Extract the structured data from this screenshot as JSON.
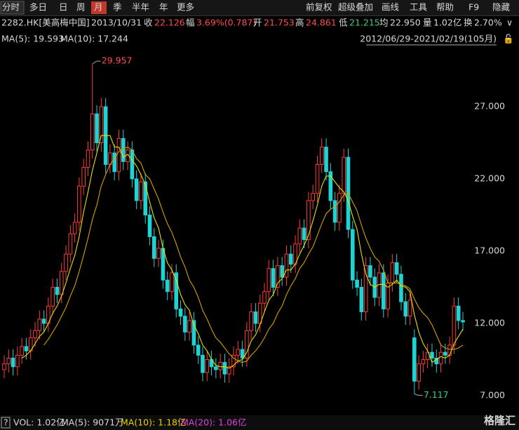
{
  "toolbar": {
    "periods": [
      "分时",
      "多日",
      "日",
      "周",
      "月",
      "季",
      "半年",
      "年",
      "更多"
    ],
    "tools": [
      "前复权",
      "超级叠加",
      "画线",
      "工具",
      "帮助",
      "F9",
      "隐藏"
    ]
  },
  "quote": {
    "symbol": "2282.HK[美高梅中国]",
    "date": "2013/10/31",
    "fields": [
      {
        "label": "收",
        "value": 22.126
      },
      {
        "label": "幅",
        "value": "3.69%(0.787)"
      },
      {
        "label": "开",
        "value": 21.753
      },
      {
        "label": "高",
        "value": 24.861
      },
      {
        "label": "低",
        "value": 21.215
      },
      {
        "label": "均",
        "value": "22.950"
      },
      {
        "label": "量",
        "value": "1.02亿"
      },
      {
        "label": "换",
        "value": "2.70%"
      }
    ]
  },
  "range": "2012/06/29-2021/02/19(105月)",
  "volume_legend": [
    "VOL: 1.02亿",
    "MA(5): 9071万",
    "MA(10): 1.18亿",
    "MA(20): 1.06亿"
  ],
  "watermark": "格隆汇",
  "chart_data": {
    "type": "candlestick",
    "ylim": [
      5.74,
      31.08
    ],
    "yticks": [
      {
        "value": 7,
        "label": "7.000"
      },
      {
        "value": 12,
        "label": "12.000"
      },
      {
        "value": 17,
        "label": "17.000"
      },
      {
        "value": 22,
        "label": "22.000"
      },
      {
        "value": 27,
        "label": "27.000"
      }
    ],
    "candles": {
      "up_color": "#ff3b3b",
      "down_color": "#1fd3d3",
      "open": [
        8.8,
        9.2,
        9.6,
        9.0,
        9.8,
        10.4,
        10.1,
        11.0,
        11.5,
        12.3,
        12.0,
        13.2,
        14.5,
        14.0,
        15.6,
        16.8,
        18.2,
        19.0,
        21.5,
        22.8,
        24.0,
        26.5,
        24.5,
        27.0,
        23.0,
        23.8,
        22.5,
        24.8,
        23.2,
        24.0,
        22.0,
        20.5,
        21.8,
        19.5,
        18.0,
        16.5,
        17.2,
        15.0,
        14.2,
        15.5,
        13.0,
        12.5,
        11.4,
        12.2,
        10.5,
        9.8,
        8.6,
        9.5,
        9.0,
        8.8,
        9.3,
        8.5,
        9.0,
        9.8,
        10.2,
        9.6,
        11.5,
        12.8,
        12.0,
        13.4,
        14.2,
        15.8,
        14.5,
        16.0,
        15.2,
        16.8,
        16.1,
        17.5,
        18.6,
        17.8,
        20.5,
        21.0,
        23.0,
        24.2,
        22.5,
        20.5,
        19.0,
        21.0,
        23.5,
        18.5,
        15.0,
        14.5,
        12.8,
        16.0,
        15.2,
        13.8,
        15.5,
        13.0,
        14.8,
        16.2,
        15.4,
        13.5,
        12.5,
        11.0,
        8.0,
        9.2,
        9.5,
        10.0,
        9.6,
        9.2,
        10.0,
        9.8,
        10.5,
        13.2,
        12.2
      ],
      "high": [
        9.8,
        10.2,
        10.2,
        10.4,
        11.0,
        11.0,
        11.6,
        12.1,
        12.9,
        12.9,
        13.8,
        15.1,
        15.1,
        16.2,
        17.4,
        18.8,
        19.6,
        22.1,
        23.4,
        24.6,
        29.957,
        27.1,
        27.6,
        27.6,
        24.4,
        24.4,
        25.4,
        25.4,
        24.6,
        24.6,
        22.6,
        22.4,
        22.4,
        20.1,
        18.6,
        17.8,
        17.8,
        15.6,
        16.1,
        16.1,
        13.6,
        13.1,
        12.8,
        12.8,
        11.1,
        10.4,
        10.1,
        10.1,
        9.6,
        9.9,
        9.9,
        9.6,
        10.4,
        10.8,
        10.8,
        12.1,
        13.4,
        13.4,
        14.0,
        14.8,
        16.4,
        16.4,
        16.6,
        16.6,
        17.4,
        17.4,
        18.1,
        19.2,
        19.2,
        21.1,
        21.6,
        23.6,
        24.8,
        24.8,
        23.1,
        21.1,
        21.6,
        24.1,
        24.1,
        19.1,
        15.6,
        15.1,
        16.6,
        16.6,
        15.8,
        16.1,
        16.1,
        15.4,
        16.8,
        16.8,
        16.0,
        14.1,
        14.2,
        11.6,
        9.8,
        10.1,
        10.6,
        10.6,
        10.2,
        10.6,
        10.6,
        11.1,
        13.8,
        13.8,
        12.8
      ],
      "low": [
        8.2,
        8.6,
        8.4,
        8.4,
        9.2,
        9.5,
        9.5,
        10.4,
        10.9,
        11.4,
        11.4,
        12.6,
        13.4,
        13.4,
        15.0,
        16.2,
        17.6,
        18.4,
        20.9,
        22.2,
        23.4,
        23.9,
        23.9,
        22.4,
        22.4,
        21.9,
        21.9,
        22.6,
        22.6,
        21.4,
        19.9,
        19.9,
        18.9,
        17.4,
        15.9,
        15.9,
        14.4,
        13.6,
        13.6,
        12.4,
        11.9,
        10.8,
        10.8,
        9.9,
        9.2,
        8.0,
        8.0,
        8.4,
        8.2,
        8.2,
        7.9,
        7.9,
        8.4,
        9.2,
        9.0,
        9.0,
        10.9,
        11.4,
        11.4,
        12.8,
        13.6,
        13.9,
        13.9,
        14.6,
        14.6,
        15.5,
        15.5,
        16.9,
        17.2,
        17.2,
        19.9,
        20.4,
        22.4,
        21.9,
        19.9,
        18.4,
        18.4,
        20.4,
        17.9,
        14.4,
        13.9,
        12.2,
        12.2,
        14.6,
        13.2,
        13.2,
        12.4,
        12.4,
        14.2,
        14.8,
        12.9,
        11.9,
        11.9,
        7.117,
        7.4,
        8.6,
        8.9,
        9.0,
        8.6,
        8.6,
        9.2,
        9.2,
        9.9,
        11.6,
        11.5
      ],
      "close": [
        9.2,
        9.6,
        9.0,
        9.8,
        10.4,
        10.1,
        11.0,
        11.5,
        12.3,
        12.0,
        13.2,
        14.5,
        14.0,
        15.6,
        16.8,
        18.2,
        19.0,
        21.5,
        22.8,
        24.0,
        26.5,
        24.5,
        27.0,
        23.0,
        23.8,
        22.5,
        24.8,
        23.2,
        24.0,
        22.0,
        20.5,
        21.8,
        19.5,
        18.0,
        16.5,
        17.2,
        15.0,
        14.2,
        15.5,
        13.0,
        12.5,
        11.4,
        12.2,
        10.5,
        9.8,
        8.6,
        9.5,
        9.0,
        8.8,
        9.3,
        8.5,
        9.0,
        9.8,
        10.2,
        9.6,
        11.5,
        12.8,
        12.0,
        13.4,
        14.2,
        15.8,
        14.5,
        16.0,
        15.2,
        16.8,
        16.1,
        17.5,
        18.6,
        17.8,
        20.5,
        21.0,
        23.0,
        24.2,
        22.5,
        20.5,
        19.0,
        21.0,
        23.5,
        18.5,
        15.0,
        14.5,
        12.8,
        16.0,
        15.2,
        13.8,
        15.5,
        13.0,
        14.8,
        16.2,
        15.4,
        13.5,
        12.5,
        13.6,
        8.0,
        9.2,
        9.5,
        10.0,
        9.6,
        9.2,
        10.0,
        9.8,
        10.5,
        13.2,
        12.2,
        12.1
      ]
    },
    "series": [
      {
        "name": "MA(5): 19.593",
        "color": "#e8e000",
        "values": [
          null,
          null,
          null,
          null,
          9.6,
          9.8,
          10.1,
          10.6,
          11.1,
          11.4,
          12.0,
          12.7,
          13.2,
          13.9,
          14.8,
          15.8,
          16.7,
          18.0,
          19.7,
          21.1,
          22.6,
          23.8,
          25.0,
          25.0,
          25.0,
          24.2,
          24.2,
          23.5,
          23.7,
          23.3,
          22.9,
          22.3,
          21.6,
          20.4,
          19.3,
          18.6,
          17.2,
          16.2,
          15.7,
          15.0,
          14.0,
          13.3,
          12.9,
          11.9,
          11.3,
          10.5,
          10.1,
          9.5,
          9.1,
          9.0,
          9.0,
          8.9,
          9.1,
          9.4,
          9.5,
          10.0,
          10.8,
          11.2,
          11.9,
          12.8,
          13.6,
          14.0,
          14.8,
          15.1,
          15.7,
          15.7,
          16.1,
          16.8,
          17.4,
          18.1,
          19.1,
          20.2,
          21.5,
          22.2,
          22.2,
          21.8,
          21.4,
          21.1,
          20.5,
          19.4,
          18.5,
          16.8,
          15.4,
          14.7,
          14.5,
          14.7,
          14.7,
          14.5,
          14.7,
          15.0,
          14.6,
          14.5,
          14.2,
          12.6,
          11.4,
          10.6,
          10.1,
          9.3,
          9.5,
          9.7,
          9.6,
          9.8,
          10.6,
          11.1,
          11.6
        ]
      },
      {
        "name": "MA(10): 17.244",
        "color": "#d4a000",
        "values": [
          null,
          null,
          null,
          null,
          null,
          null,
          null,
          null,
          null,
          10.5,
          10.9,
          11.4,
          11.9,
          12.5,
          13.1,
          13.9,
          14.6,
          15.6,
          16.7,
          17.9,
          19.2,
          20.2,
          21.5,
          22.3,
          23.0,
          23.4,
          23.9,
          24.1,
          24.2,
          24.0,
          23.4,
          23.1,
          22.3,
          22.0,
          21.3,
          20.6,
          19.7,
          18.9,
          18.3,
          17.5,
          16.6,
          15.9,
          15.0,
          14.5,
          13.8,
          12.9,
          12.3,
          11.6,
          11.0,
          10.7,
          10.3,
          9.9,
          9.6,
          9.4,
          9.3,
          9.4,
          9.8,
          10.1,
          10.5,
          11.0,
          11.6,
          12.0,
          12.7,
          13.2,
          14.0,
          14.6,
          15.1,
          15.8,
          16.2,
          16.8,
          17.3,
          18.1,
          18.9,
          19.6,
          19.9,
          20.1,
          20.4,
          20.9,
          21.0,
          20.4,
          19.8,
          18.8,
          17.9,
          17.2,
          16.6,
          16.3,
          15.7,
          14.8,
          14.8,
          14.8,
          14.7,
          14.6,
          14.4,
          13.7,
          13.1,
          12.7,
          12.4,
          11.9,
          11.2,
          10.5,
          10.3,
          10.2,
          10.2,
          10.3,
          10.5
        ]
      }
    ]
  }
}
